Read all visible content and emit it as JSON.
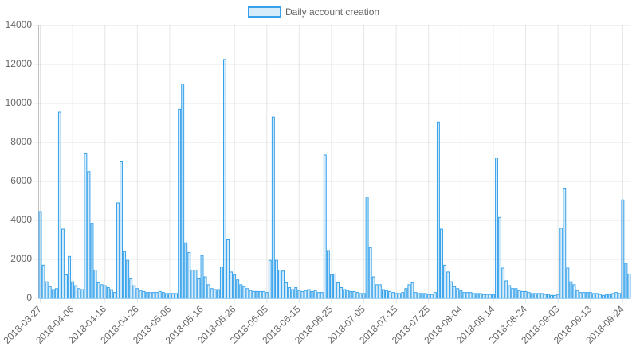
{
  "chart_data": {
    "type": "bar",
    "series": [
      {
        "name": "Daily account creation",
        "color": "rgba(54, 162, 235, 0.2)",
        "border_color": "#36a2eb",
        "values": [
          4450,
          1700,
          850,
          600,
          450,
          500,
          9550,
          3550,
          1200,
          2150,
          850,
          650,
          500,
          450,
          7450,
          6500,
          3850,
          1450,
          800,
          700,
          650,
          550,
          450,
          300,
          4900,
          7000,
          2400,
          1950,
          1000,
          650,
          500,
          400,
          350,
          300,
          300,
          300,
          300,
          350,
          300,
          250,
          250,
          250,
          250,
          9700,
          11000,
          2850,
          2350,
          1450,
          1450,
          1000,
          2200,
          1100,
          700,
          500,
          450,
          450,
          1600,
          12250,
          3000,
          1350,
          1200,
          950,
          700,
          600,
          500,
          400,
          350,
          350,
          350,
          350,
          300,
          1950,
          9300,
          1950,
          1450,
          1400,
          800,
          550,
          450,
          550,
          400,
          350,
          400,
          450,
          350,
          400,
          300,
          300,
          7350,
          2450,
          1200,
          1250,
          800,
          550,
          450,
          400,
          350,
          350,
          300,
          250,
          250,
          5200,
          2600,
          1100,
          700,
          700,
          450,
          400,
          350,
          300,
          250,
          250,
          300,
          500,
          700,
          800,
          300,
          250,
          250,
          250,
          200,
          200,
          300,
          9050,
          3550,
          1700,
          1350,
          850,
          600,
          500,
          400,
          300,
          300,
          300,
          250,
          250,
          250,
          200,
          200,
          200,
          200,
          7200,
          4150,
          1550,
          900,
          650,
          500,
          500,
          400,
          350,
          350,
          300,
          250,
          250,
          250,
          250,
          200,
          200,
          150,
          150,
          200,
          3600,
          5650,
          1550,
          850,
          700,
          400,
          300,
          300,
          300,
          300,
          250,
          250,
          200,
          150,
          200,
          200,
          250,
          300,
          250,
          5050,
          1800,
          1250
        ]
      }
    ],
    "categories": [
      "2018-03-27",
      null,
      null,
      null,
      null,
      null,
      null,
      null,
      null,
      null,
      "2018-04-06",
      null,
      null,
      null,
      null,
      null,
      null,
      null,
      null,
      null,
      "2018-04-16",
      null,
      null,
      null,
      null,
      null,
      null,
      null,
      null,
      null,
      "2018-04-26",
      null,
      null,
      null,
      null,
      null,
      null,
      null,
      null,
      null,
      "2018-05-06",
      null,
      null,
      null,
      null,
      null,
      null,
      null,
      null,
      null,
      "2018-05-16",
      null,
      null,
      null,
      null,
      null,
      null,
      null,
      null,
      null,
      "2018-05-26",
      null,
      null,
      null,
      null,
      null,
      null,
      null,
      null,
      null,
      "2018-06-05",
      null,
      null,
      null,
      null,
      null,
      null,
      null,
      null,
      null,
      "2018-06-15",
      null,
      null,
      null,
      null,
      null,
      null,
      null,
      null,
      null,
      "2018-06-25",
      null,
      null,
      null,
      null,
      null,
      null,
      null,
      null,
      null,
      "2018-07-05",
      null,
      null,
      null,
      null,
      null,
      null,
      null,
      null,
      null,
      "2018-07-15",
      null,
      null,
      null,
      null,
      null,
      null,
      null,
      null,
      null,
      "2018-07-25",
      null,
      null,
      null,
      null,
      null,
      null,
      null,
      null,
      null,
      "2018-08-04",
      null,
      null,
      null,
      null,
      null,
      null,
      null,
      null,
      null,
      "2018-08-14",
      null,
      null,
      null,
      null,
      null,
      null,
      null,
      null,
      null,
      "2018-08-24",
      null,
      null,
      null,
      null,
      null,
      null,
      null,
      null,
      null,
      "2018-09-03",
      null,
      null,
      null,
      null,
      null,
      null,
      null,
      null,
      null,
      "2018-09-13",
      null,
      null,
      null,
      null,
      null,
      null,
      null,
      null,
      null,
      "2018-09-24",
      null,
      null
    ],
    "ylim": [
      0,
      14000
    ],
    "yticks": [
      0,
      2000,
      4000,
      6000,
      8000,
      10000,
      12000,
      14000
    ],
    "grid": true,
    "legend": "top"
  }
}
